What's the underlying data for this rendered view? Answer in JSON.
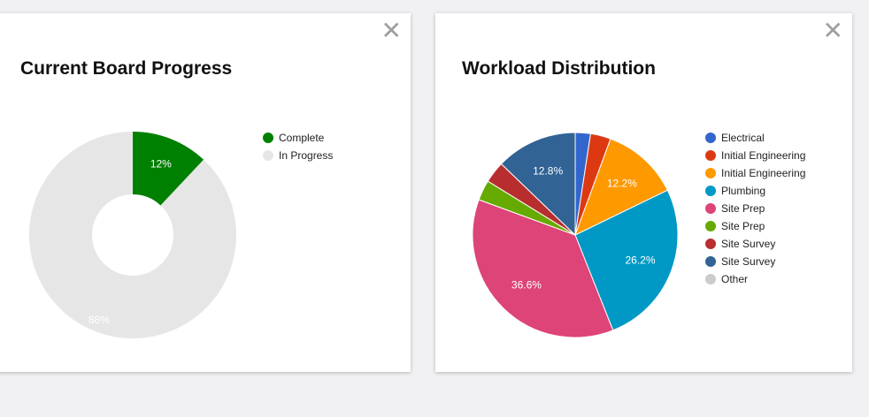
{
  "cards": [
    {
      "title": "Current Board Progress",
      "close_icon": "close-icon"
    },
    {
      "title": "Workload Distribution",
      "close_icon": "close-icon"
    }
  ],
  "close_glyph": "✕",
  "chart_data": [
    {
      "type": "pie",
      "variant": "donut",
      "title": "Current Board Progress",
      "labels": [
        "Complete",
        "In Progress"
      ],
      "values": [
        12,
        88
      ],
      "value_labels": [
        "12%",
        "88%"
      ],
      "colors": [
        "#008000",
        "#e6e6e6"
      ],
      "label_colors": [
        "#ffffff",
        "#ffffff"
      ],
      "legend": "right"
    },
    {
      "type": "pie",
      "title": "Workload Distribution",
      "labels": [
        "Electrical",
        "Initial Engineering",
        "Initial Engineering",
        "Plumbing",
        "Site Prep",
        "Site Prep",
        "Site Survey",
        "Site Survey",
        "Other"
      ],
      "values": [
        2.4,
        3.2,
        12.2,
        26.2,
        36.6,
        3.2,
        3.4,
        12.8,
        0
      ],
      "value_labels": [
        "",
        "",
        "12.2%",
        "26.2%",
        "36.6%",
        "",
        "",
        "12.8%",
        ""
      ],
      "colors": [
        "#3366cc",
        "#dc3912",
        "#ff9900",
        "#0099c6",
        "#dd4477",
        "#66aa00",
        "#b82e2e",
        "#316395",
        "#cccccc"
      ],
      "legend": "right"
    }
  ]
}
